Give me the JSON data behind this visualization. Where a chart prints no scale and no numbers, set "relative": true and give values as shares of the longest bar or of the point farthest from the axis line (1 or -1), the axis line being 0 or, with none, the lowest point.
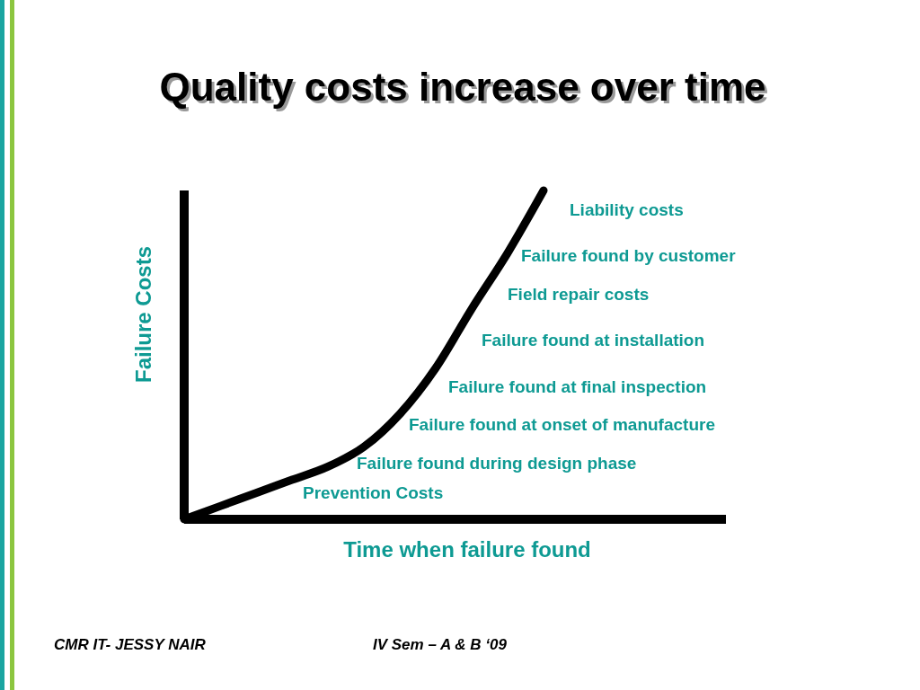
{
  "chart_data": {
    "type": "line",
    "relative": true,
    "title": "Quality costs increase over time",
    "xlabel": "Time when failure found",
    "ylabel": "Failure Costs",
    "categories": [
      null,
      null,
      null,
      null,
      null,
      null,
      null,
      null,
      null,
      null,
      null,
      null,
      null,
      null,
      null,
      null
    ],
    "series": [
      {
        "color": "#000000",
        "values": [
          0,
          0.04,
          0.08,
          0.12,
          0.16,
          0.22,
          0.32,
          0.46,
          0.64,
          0.81,
          1,
          null,
          null,
          null,
          null,
          null
        ]
      }
    ],
    "annotations": [
      "Liability costs",
      "Failure found by customer",
      "Field repair costs",
      "Failure found at installation",
      "Failure found at final inspection",
      "Failure found at onset of manufacture",
      "Failure found during design phase",
      "Prevention Costs",
      "CMR IT- JESSY NAIR",
      "IV Sem – A & B ‘09"
    ]
  }
}
